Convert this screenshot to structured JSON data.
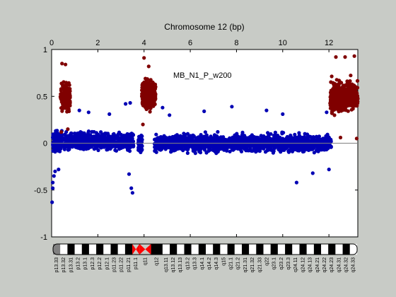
{
  "chart_data": {
    "type": "scatter",
    "title": "Chromosome 12 (bp)",
    "annotation": "MB_N1_P_w200",
    "x_ticks": [
      0,
      2,
      4,
      6,
      8,
      10,
      12
    ],
    "xlim": [
      0,
      13.25
    ],
    "y_ticks": [
      1,
      0.5,
      0,
      -0.5,
      -1
    ],
    "ylim": [
      -1,
      1
    ],
    "grid": false,
    "reference_line_y": 0,
    "series": [
      {
        "color": "#0000b4",
        "segments": [
          {
            "x0": 0.05,
            "x1": 0.45,
            "mean": 0.02,
            "spread": 0.12,
            "n": 160
          },
          {
            "x0": 0.55,
            "x1": 3.55,
            "mean": 0.02,
            "spread": 0.1,
            "n": 700
          },
          {
            "x0": 3.75,
            "x1": 3.92,
            "mean": 0.0,
            "spread": 0.12,
            "n": 70
          },
          {
            "x0": 4.45,
            "x1": 12.1,
            "mean": 0.0,
            "spread": 0.1,
            "n": 1700
          }
        ],
        "outliers": [
          [
            0.02,
            -0.63
          ],
          [
            0.05,
            -0.48
          ],
          [
            0.05,
            -0.42
          ],
          [
            0.1,
            -0.35
          ],
          [
            0.15,
            -0.3
          ],
          [
            0.3,
            -0.28
          ],
          [
            1.2,
            0.35
          ],
          [
            1.6,
            0.33
          ],
          [
            2.5,
            0.31
          ],
          [
            3.2,
            0.42
          ],
          [
            3.4,
            0.43
          ],
          [
            3.35,
            -0.33
          ],
          [
            3.45,
            -0.48
          ],
          [
            3.5,
            -0.53
          ],
          [
            4.8,
            0.38
          ],
          [
            5.1,
            0.3
          ],
          [
            6.6,
            0.34
          ],
          [
            7.8,
            0.39
          ],
          [
            9.3,
            0.35
          ],
          [
            10.0,
            0.31
          ],
          [
            10.6,
            -0.42
          ],
          [
            11.3,
            -0.32
          ],
          [
            11.9,
            0.33
          ],
          [
            12.0,
            -0.28
          ]
        ]
      },
      {
        "color": "#800000",
        "segments": [
          {
            "x0": 0.38,
            "x1": 0.8,
            "mean": 0.5,
            "spread": 0.17,
            "n": 160
          },
          {
            "x0": 3.9,
            "x1": 4.5,
            "mean": 0.52,
            "spread": 0.17,
            "n": 300
          },
          {
            "x0": 12.05,
            "x1": 13.25,
            "mean": 0.5,
            "spread": 0.18,
            "n": 500
          }
        ],
        "outliers": [
          [
            0.45,
            0.85
          ],
          [
            0.6,
            0.84
          ],
          [
            0.42,
            0.12
          ],
          [
            0.7,
            0.15
          ],
          [
            4.0,
            0.91
          ],
          [
            4.2,
            0.82
          ],
          [
            3.95,
            0.2
          ],
          [
            12.3,
            0.92
          ],
          [
            13.1,
            0.93
          ],
          [
            12.7,
            0.92
          ],
          [
            12.5,
            0.06
          ],
          [
            13.2,
            0.05
          ]
        ]
      }
    ]
  },
  "ideogram": {
    "bands": [
      "p13.33",
      "p13.32",
      "p13.31",
      "p13.2",
      "p13.1",
      "p12.3",
      "p12.2",
      "p12.1",
      "p11.23",
      "p11.22",
      "p11.21",
      "p11.1",
      "q11",
      "q12",
      "q13.11",
      "q13.12",
      "q13.13",
      "q13.2",
      "q13.3",
      "q14.1",
      "q14.2",
      "q14.3",
      "q15",
      "q21.1",
      "q21.2",
      "q21.31",
      "q21.32",
      "q21.33",
      "q22",
      "q23.1",
      "q23.2",
      "q23.3",
      "q24.11",
      "q24.12",
      "q24.13",
      "q24.21",
      "q24.22",
      "q24.23",
      "q24.31",
      "q24.32",
      "q24.33"
    ]
  }
}
